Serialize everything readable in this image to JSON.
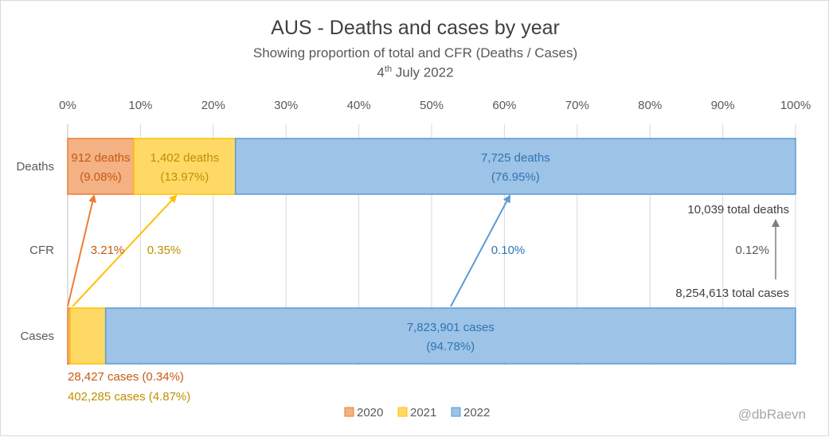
{
  "title": {
    "main": "AUS - Deaths and cases by year",
    "subtitle": "Showing proportion of total and CFR (Deaths / Cases)",
    "date_prefix": "4",
    "date_sup": "th",
    "date_suffix": " July 2022"
  },
  "watermark": "@dbRaevn",
  "colors": {
    "y2020": "#f4b183",
    "y2020_border": "#ed7d31",
    "y2020_text": "#c55a11",
    "y2021": "#ffd966",
    "y2021_border": "#ffc000",
    "y2021_text": "#bf9000",
    "y2022": "#9dc3e6",
    "y2022_border": "#5b9bd5",
    "y2022_text": "#2e75b6",
    "axis_text": "#595959",
    "grid": "#d9d9d9",
    "total_arrow": "#7f7f7f"
  },
  "chart_data": {
    "type": "bar",
    "orientation": "horizontal",
    "stacked": "100%",
    "categories": [
      "Deaths",
      "CFR",
      "Cases"
    ],
    "xlim": [
      0,
      100
    ],
    "x_ticks": [
      "0%",
      "10%",
      "20%",
      "30%",
      "40%",
      "50%",
      "60%",
      "70%",
      "80%",
      "90%",
      "100%"
    ],
    "legend_position": "bottom",
    "series": [
      {
        "name": "2020",
        "key": "y2020",
        "deaths": 912,
        "deaths_pct": 9.08,
        "cases": 28427,
        "cases_pct": 0.34,
        "cfr": 3.21
      },
      {
        "name": "2021",
        "key": "y2021",
        "deaths": 1402,
        "deaths_pct": 13.97,
        "cases": 402285,
        "cases_pct": 4.87,
        "cfr": 0.35
      },
      {
        "name": "2022",
        "key": "y2022",
        "deaths": 7725,
        "deaths_pct": 76.95,
        "cases": 7823901,
        "cases_pct": 94.78,
        "cfr": 0.1
      }
    ],
    "labels": {
      "deaths_2020_line1": "912 deaths",
      "deaths_2020_line2": "(9.08%)",
      "deaths_2021_line1": "1,402 deaths",
      "deaths_2021_line2": "(13.97%)",
      "deaths_2022_line1": "7,725 deaths",
      "deaths_2022_line2": "(76.95%)",
      "cases_2022_line1": "7,823,901 cases",
      "cases_2022_line2": "(94.78%)",
      "cases_2020": "28,427 cases (0.34%)",
      "cases_2021": "402,285 cases (4.87%)",
      "cfr_2020": "3.21%",
      "cfr_2021": "0.35%",
      "cfr_2022": "0.10%",
      "cfr_total": "0.12%",
      "total_deaths": "10,039 total deaths",
      "total_cases": "8,254,613 total cases"
    },
    "totals": {
      "deaths": 10039,
      "cases": 8254613,
      "cfr": 0.12
    }
  }
}
